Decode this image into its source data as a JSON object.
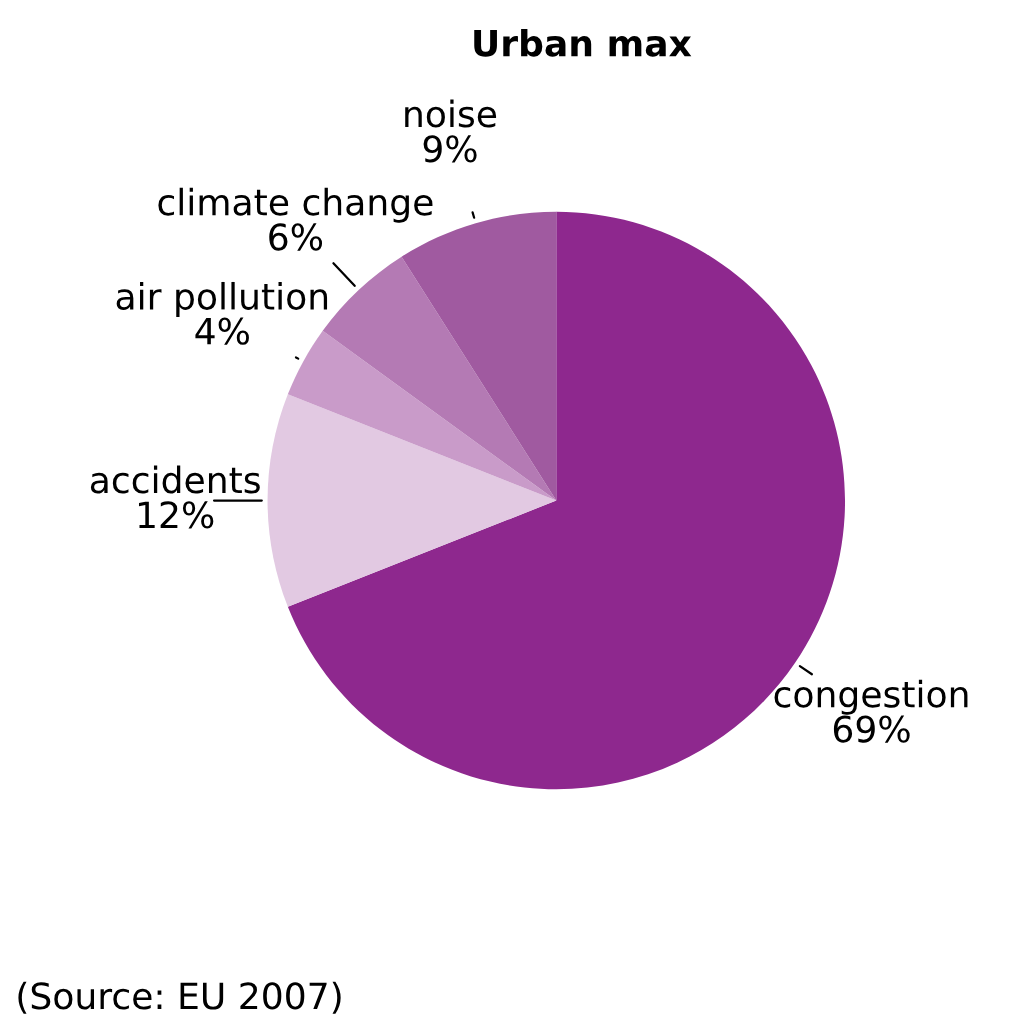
{
  "chart_data": {
    "type": "pie",
    "title": "Urban max",
    "categories": [
      "congestion",
      "accidents",
      "air pollution",
      "climate change",
      "noise"
    ],
    "values": [
      69,
      12,
      4,
      6,
      9
    ],
    "value_labels": [
      "69%",
      "12%",
      "4%",
      "6%",
      "9%"
    ],
    "colors": [
      "#8e288e",
      "#e2c9e2",
      "#c99bc9",
      "#b47ab4",
      "#a05aa0"
    ],
    "annotations": [
      "(Source: EU 2007)"
    ]
  }
}
